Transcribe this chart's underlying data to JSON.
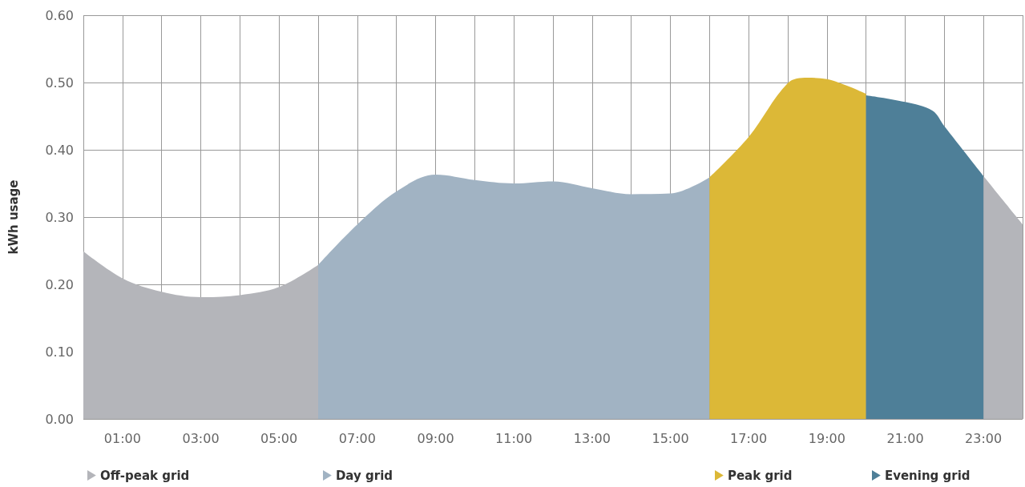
{
  "chart_data": {
    "type": "area",
    "ylabel": "kWh usage",
    "series": [
      {
        "name": "Off-peak grid",
        "color": "#b4b5ba",
        "x": [
          0,
          1,
          2,
          3,
          4,
          5,
          6,
          12,
          23,
          24
        ],
        "values": [
          0.249,
          0.209,
          0.189,
          0.181,
          0.184,
          0.196,
          0.229,
          null,
          0.361,
          0.289
        ]
      },
      {
        "name": "Day grid",
        "color": "#a1b3c3",
        "x": [
          6,
          7,
          8,
          9,
          10,
          11,
          12,
          13,
          14,
          15,
          16
        ],
        "values": [
          0.229,
          0.289,
          0.338,
          0.363,
          0.355,
          0.35,
          0.353,
          0.343,
          0.334,
          0.335,
          0.359
        ]
      },
      {
        "name": "Peak grid",
        "color": "#dcb837",
        "x": [
          16,
          17,
          18,
          18.5,
          19,
          20
        ],
        "values": [
          0.359,
          0.419,
          0.499,
          0.507,
          0.505,
          0.483
        ]
      },
      {
        "name": "Evening grid",
        "color": "#4e7f98",
        "x": [
          20,
          21,
          21.7,
          22,
          23
        ],
        "values": [
          0.481,
          0.471,
          0.458,
          0.435,
          0.361
        ]
      }
    ],
    "xlim": [
      0,
      24
    ],
    "xticks": [
      {
        "value": 0,
        "label": null
      },
      {
        "value": 1,
        "label": "01:00"
      },
      {
        "value": 2,
        "label": null
      },
      {
        "value": 3,
        "label": "03:00"
      },
      {
        "value": 4,
        "label": null
      },
      {
        "value": 5,
        "label": "05:00"
      },
      {
        "value": 6,
        "label": null
      },
      {
        "value": 7,
        "label": "07:00"
      },
      {
        "value": 8,
        "label": null
      },
      {
        "value": 9,
        "label": "09:00"
      },
      {
        "value": 10,
        "label": null
      },
      {
        "value": 11,
        "label": "11:00"
      },
      {
        "value": 12,
        "label": null
      },
      {
        "value": 13,
        "label": "13:00"
      },
      {
        "value": 14,
        "label": null
      },
      {
        "value": 15,
        "label": "15:00"
      },
      {
        "value": 16,
        "label": null
      },
      {
        "value": 17,
        "label": "17:00"
      },
      {
        "value": 18,
        "label": null
      },
      {
        "value": 19,
        "label": "19:00"
      },
      {
        "value": 20,
        "label": null
      },
      {
        "value": 21,
        "label": "21:00"
      },
      {
        "value": 22,
        "label": null
      },
      {
        "value": 23,
        "label": "23:00"
      },
      {
        "value": 24,
        "label": null
      }
    ],
    "ylim": [
      0,
      0.6
    ],
    "yticks": [
      {
        "value": 0,
        "label": "0.00"
      },
      {
        "value": 0.1,
        "label": "0.10"
      },
      {
        "value": 0.2,
        "label": "0.20"
      },
      {
        "value": 0.3,
        "label": "0.30"
      },
      {
        "value": 0.4,
        "label": "0.40"
      },
      {
        "value": 0.5,
        "label": "0.50"
      },
      {
        "value": 0.6,
        "label": "0.60"
      }
    ],
    "grid": true,
    "legend": "bottom",
    "marker": "none"
  }
}
